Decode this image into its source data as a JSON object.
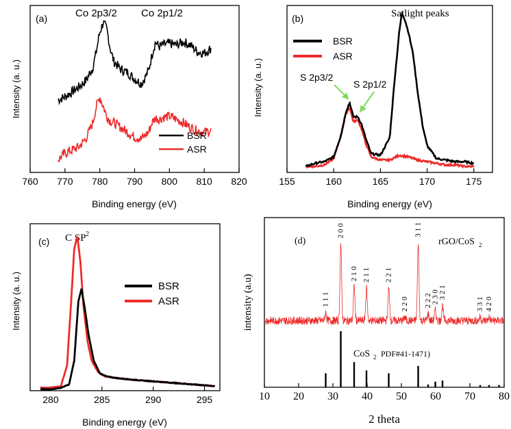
{
  "colors": {
    "bsr": "#000000",
    "asr": "#ee2b2b",
    "axis": "#000000",
    "arrow": "#7ed957"
  },
  "chart_data": [
    {
      "id": "a",
      "type": "line",
      "panel_label": "(a)",
      "xlabel": "Binding energy (eV)",
      "ylabel": "Intensity (a. u.)",
      "xlim": [
        760,
        820
      ],
      "ylim": [
        0,
        1
      ],
      "xticks": [
        760,
        770,
        780,
        790,
        800,
        810,
        820
      ],
      "legend": {
        "placement": "bottom-right",
        "entries": [
          "BSR",
          "ASR"
        ]
      },
      "annotations": [
        "Co 2p3/2",
        "Co 2p1/2"
      ],
      "series": [
        {
          "name": "BSR",
          "color": "#000000",
          "x": [
            768,
            770,
            772,
            774,
            776,
            778,
            779,
            780,
            781,
            782,
            783,
            784,
            786,
            788,
            790,
            792,
            794,
            795,
            796,
            797,
            798,
            800,
            802,
            804,
            806,
            808,
            810,
            812
          ],
          "y": [
            0.44,
            0.46,
            0.49,
            0.52,
            0.56,
            0.64,
            0.74,
            0.86,
            0.92,
            0.88,
            0.76,
            0.68,
            0.63,
            0.61,
            0.57,
            0.54,
            0.62,
            0.72,
            0.8,
            0.77,
            0.78,
            0.79,
            0.78,
            0.8,
            0.78,
            0.74,
            0.73,
            0.76
          ]
        },
        {
          "name": "ASR",
          "color": "#ee2b2b",
          "x": [
            768,
            770,
            772,
            774,
            776,
            778,
            779,
            780,
            781,
            782,
            783,
            784,
            786,
            788,
            790,
            792,
            794,
            795,
            796,
            797,
            798,
            800,
            802,
            804,
            806,
            808,
            810,
            812
          ],
          "y": [
            0.07,
            0.11,
            0.13,
            0.15,
            0.2,
            0.3,
            0.4,
            0.46,
            0.4,
            0.34,
            0.31,
            0.3,
            0.27,
            0.24,
            0.21,
            0.2,
            0.24,
            0.3,
            0.33,
            0.32,
            0.33,
            0.34,
            0.32,
            0.3,
            0.27,
            0.25,
            0.24,
            0.25
          ]
        }
      ]
    },
    {
      "id": "b",
      "type": "line",
      "panel_label": "(b)",
      "xlabel": "Binding energy (eV)",
      "ylabel": "Intensity (a. u.)",
      "xlim": [
        155,
        177
      ],
      "ylim": [
        0,
        1
      ],
      "xticks": [
        155,
        160,
        165,
        170,
        175
      ],
      "legend": {
        "placement": "top-left",
        "entries": [
          "BSR",
          "ASR"
        ]
      },
      "annotations": [
        "Satlight peaks",
        "S 2p3/2",
        "S 2p1/2"
      ],
      "series": [
        {
          "name": "BSR",
          "color": "#000000",
          "x": [
            157,
            158,
            159,
            160,
            160.8,
            161.3,
            161.7,
            162.1,
            162.6,
            163.0,
            163.4,
            164,
            165,
            166,
            166.5,
            167,
            167.3,
            167.6,
            168,
            168.5,
            169,
            169.5,
            170,
            171,
            172,
            173,
            174,
            175
          ],
          "y": [
            0.02,
            0.04,
            0.05,
            0.08,
            0.22,
            0.36,
            0.42,
            0.33,
            0.33,
            0.28,
            0.2,
            0.1,
            0.09,
            0.2,
            0.55,
            0.85,
            0.98,
            0.94,
            0.86,
            0.72,
            0.48,
            0.28,
            0.15,
            0.07,
            0.06,
            0.05,
            0.05,
            0.04
          ]
        },
        {
          "name": "ASR",
          "color": "#ee2b2b",
          "x": [
            157,
            158,
            159,
            160,
            160.8,
            161.3,
            161.7,
            162.1,
            162.6,
            163.0,
            163.4,
            164,
            165,
            166,
            167,
            168,
            169,
            170,
            171,
            172,
            173,
            174,
            175
          ],
          "y": [
            0.02,
            0.02,
            0.03,
            0.07,
            0.22,
            0.35,
            0.39,
            0.3,
            0.31,
            0.25,
            0.17,
            0.08,
            0.06,
            0.06,
            0.09,
            0.08,
            0.06,
            0.05,
            0.04,
            0.03,
            0.03,
            0.02,
            0.02
          ]
        }
      ]
    },
    {
      "id": "c",
      "type": "line",
      "panel_label": "(c)",
      "xlabel": "Binding energy (eV)",
      "ylabel": "Intensity (a. u.)",
      "xlim": [
        278,
        296.5
      ],
      "ylim": [
        0,
        1
      ],
      "xticks": [
        280,
        285,
        290,
        295
      ],
      "legend": {
        "placement": "right",
        "entries": [
          "BSR",
          "ASR"
        ]
      },
      "annotations": [
        "C SP",
        "2"
      ],
      "series": [
        {
          "name": "BSR",
          "color": "#000000",
          "x": [
            279,
            280,
            281,
            281.8,
            282.3,
            282.7,
            283.0,
            283.3,
            283.7,
            284.2,
            284.8,
            285.5,
            286.5,
            288,
            290,
            292,
            294,
            296
          ],
          "y": [
            0.0,
            0.0,
            0.01,
            0.03,
            0.18,
            0.55,
            0.63,
            0.52,
            0.34,
            0.18,
            0.1,
            0.08,
            0.07,
            0.06,
            0.05,
            0.04,
            0.03,
            0.02
          ]
        },
        {
          "name": "ASR",
          "color": "#ee2b2b",
          "x": [
            279,
            280,
            281,
            281.6,
            282.0,
            282.3,
            282.6,
            282.9,
            283.2,
            283.6,
            284.0,
            284.6,
            285.3,
            286.5,
            288,
            290,
            292,
            294,
            296
          ],
          "y": [
            0.01,
            0.01,
            0.02,
            0.15,
            0.55,
            0.88,
            0.96,
            0.8,
            0.52,
            0.3,
            0.18,
            0.11,
            0.08,
            0.07,
            0.06,
            0.05,
            0.04,
            0.03,
            0.02
          ]
        }
      ]
    },
    {
      "id": "d",
      "type": "line",
      "panel_label": "(d)",
      "xlabel": "2 theta",
      "ylabel": "intensity (a.u)",
      "xlim": [
        10,
        80
      ],
      "xticks": [
        10,
        20,
        30,
        40,
        50,
        60,
        70,
        80
      ],
      "annotations": [
        "rGO/CoS",
        "2"
      ],
      "series_label": "rGO/CoS2",
      "series_baseline": 0.22,
      "xrd_peaks": [
        {
          "two_theta": 27.9,
          "height": 0.07,
          "hkl": "1 1 1"
        },
        {
          "two_theta": 32.3,
          "height": 0.66,
          "hkl": "2 0 0"
        },
        {
          "two_theta": 36.2,
          "height": 0.29,
          "hkl": "2 1 0"
        },
        {
          "two_theta": 39.8,
          "height": 0.28,
          "hkl": "2 1 1"
        },
        {
          "two_theta": 46.3,
          "height": 0.28,
          "hkl": "2 2 1"
        },
        {
          "two_theta": 51.0,
          "height": 0.03,
          "hkl": "2 2 0"
        },
        {
          "two_theta": 54.9,
          "height": 0.67,
          "hkl": "3 1 1"
        },
        {
          "two_theta": 57.8,
          "height": 0.06,
          "hkl": "2 2 2"
        },
        {
          "two_theta": 59.9,
          "height": 0.09,
          "hkl": "2 3 0"
        },
        {
          "two_theta": 62.0,
          "height": 0.13,
          "hkl": "3 2 1"
        },
        {
          "two_theta": 73.0,
          "height": 0.03,
          "hkl": "3 3 1"
        },
        {
          "two_theta": 75.6,
          "height": 0.03,
          "hkl": "4 2 0"
        }
      ],
      "reference": {
        "label_main": "CoS",
        "label_sub": "2",
        "label_pdf": "PDF#41-1471)",
        "x": [
          27.9,
          32.3,
          36.2,
          39.8,
          46.3,
          54.9,
          57.8,
          59.9,
          62.0,
          73.0,
          75.6,
          78.5
        ],
        "heights": [
          0.25,
          1.0,
          0.45,
          0.3,
          0.25,
          0.38,
          0.05,
          0.1,
          0.12,
          0.04,
          0.04,
          0.04
        ]
      }
    }
  ]
}
